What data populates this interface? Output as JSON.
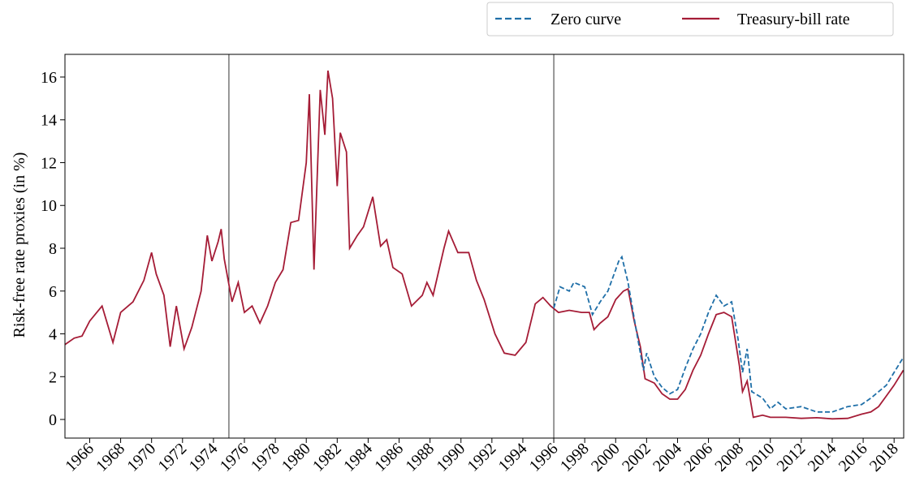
{
  "chart_data": {
    "type": "line",
    "ylabel": "Risk-free rate proxies (in %)",
    "xlim": [
      1964.4,
      2018.62
    ],
    "ylim": [
      -0.87,
      17.06
    ],
    "xticks": [
      1966,
      1968,
      1970,
      1972,
      1974,
      1976,
      1978,
      1980,
      1982,
      1984,
      1986,
      1988,
      1990,
      1992,
      1994,
      1996,
      1998,
      2000,
      2002,
      2004,
      2006,
      2008,
      2010,
      2012,
      2014,
      2016,
      2018
    ],
    "yticks": [
      0,
      2,
      4,
      6,
      8,
      10,
      12,
      14,
      16
    ],
    "vlines": [
      1975,
      1996
    ],
    "legend": "upper right outside",
    "series": [
      {
        "name": "Zero curve",
        "color": "#1f6fa8",
        "dashed": true,
        "x": [
          1996,
          1996.4,
          1997,
          1997.3,
          1998,
          1998.5,
          1999,
          1999.5,
          2000.2,
          2000.4,
          2000.8,
          2001.3,
          2001.8,
          2002,
          2002.5,
          2003,
          2003.5,
          2004,
          2004.5,
          2005,
          2005.5,
          2006,
          2006.5,
          2007,
          2007.5,
          2007.9,
          2008.2,
          2008.5,
          2008.8,
          2009.5,
          2010,
          2010.5,
          2011,
          2012,
          2013,
          2014,
          2015,
          2015.9,
          2016.5,
          2017,
          2017.5,
          2018,
          2018.6
        ],
        "values": [
          5.2,
          6.2,
          6.0,
          6.4,
          6.2,
          4.9,
          5.5,
          6.0,
          7.4,
          7.6,
          6.4,
          4.3,
          2.3,
          3.1,
          2.0,
          1.5,
          1.2,
          1.4,
          2.4,
          3.3,
          4.0,
          5.0,
          5.8,
          5.3,
          5.5,
          3.8,
          2.2,
          3.3,
          1.3,
          1.0,
          0.5,
          0.8,
          0.5,
          0.6,
          0.35,
          0.35,
          0.6,
          0.7,
          1.0,
          1.3,
          1.6,
          2.2,
          2.9
        ]
      },
      {
        "name": "Treasury-bill rate",
        "color": "#a51c36",
        "dashed": false,
        "x": [
          1964.4,
          1965,
          1965.5,
          1966,
          1966.8,
          1967.5,
          1968,
          1968.8,
          1969.5,
          1970,
          1970.3,
          1970.8,
          1971.2,
          1971.6,
          1972.1,
          1972.6,
          1973.2,
          1973.6,
          1973.9,
          1974.3,
          1974.5,
          1974.7,
          1975.2,
          1975.6,
          1976,
          1976.5,
          1977,
          1977.5,
          1978,
          1978.5,
          1979,
          1979.5,
          1980,
          1980.2,
          1980.5,
          1980.9,
          1981.2,
          1981.4,
          1981.7,
          1982,
          1982.2,
          1982.6,
          1982.8,
          1983.3,
          1983.7,
          1984.3,
          1984.8,
          1985.2,
          1985.6,
          1986.2,
          1986.8,
          1987.5,
          1987.8,
          1988.2,
          1988.9,
          1989.2,
          1989.8,
          1990.5,
          1991,
          1991.5,
          1992.2,
          1992.8,
          1993.5,
          1994.2,
          1994.8,
          1995.3,
          1995.8,
          1996.3,
          1997,
          1997.8,
          1998.3,
          1998.6,
          1999,
          1999.5,
          2000,
          2000.5,
          2000.8,
          2001.2,
          2001.6,
          2001.9,
          2002.5,
          2003,
          2003.5,
          2004,
          2004.5,
          2005,
          2005.5,
          2006,
          2006.5,
          2007,
          2007.5,
          2008,
          2008.2,
          2008.5,
          2008.9,
          2009.5,
          2010,
          2011,
          2012,
          2013,
          2014,
          2015,
          2015.9,
          2016.5,
          2017,
          2017.5,
          2018,
          2018.6
        ],
        "values": [
          3.5,
          3.8,
          3.9,
          4.6,
          5.3,
          3.6,
          5.0,
          5.5,
          6.5,
          7.8,
          6.8,
          5.8,
          3.4,
          5.3,
          3.3,
          4.3,
          6.0,
          8.6,
          7.4,
          8.3,
          8.9,
          7.5,
          5.5,
          6.4,
          5.0,
          5.3,
          4.5,
          5.3,
          6.4,
          7.0,
          9.2,
          9.3,
          12.0,
          15.2,
          7.0,
          15.4,
          13.3,
          16.3,
          15.0,
          10.9,
          13.4,
          12.5,
          8.0,
          8.6,
          9.0,
          10.4,
          8.1,
          8.4,
          7.1,
          6.8,
          5.3,
          5.8,
          6.4,
          5.8,
          8.0,
          8.8,
          7.8,
          7.8,
          6.5,
          5.6,
          4.0,
          3.1,
          3.0,
          3.6,
          5.4,
          5.7,
          5.3,
          5.0,
          5.1,
          5.0,
          5.0,
          4.2,
          4.5,
          4.8,
          5.6,
          6.0,
          6.1,
          4.6,
          3.4,
          1.9,
          1.7,
          1.2,
          0.95,
          0.95,
          1.4,
          2.3,
          3.0,
          4.0,
          4.9,
          5.0,
          4.8,
          2.5,
          1.3,
          1.8,
          0.1,
          0.2,
          0.1,
          0.1,
          0.05,
          0.08,
          0.03,
          0.05,
          0.25,
          0.35,
          0.6,
          1.1,
          1.6,
          2.3
        ]
      }
    ]
  }
}
